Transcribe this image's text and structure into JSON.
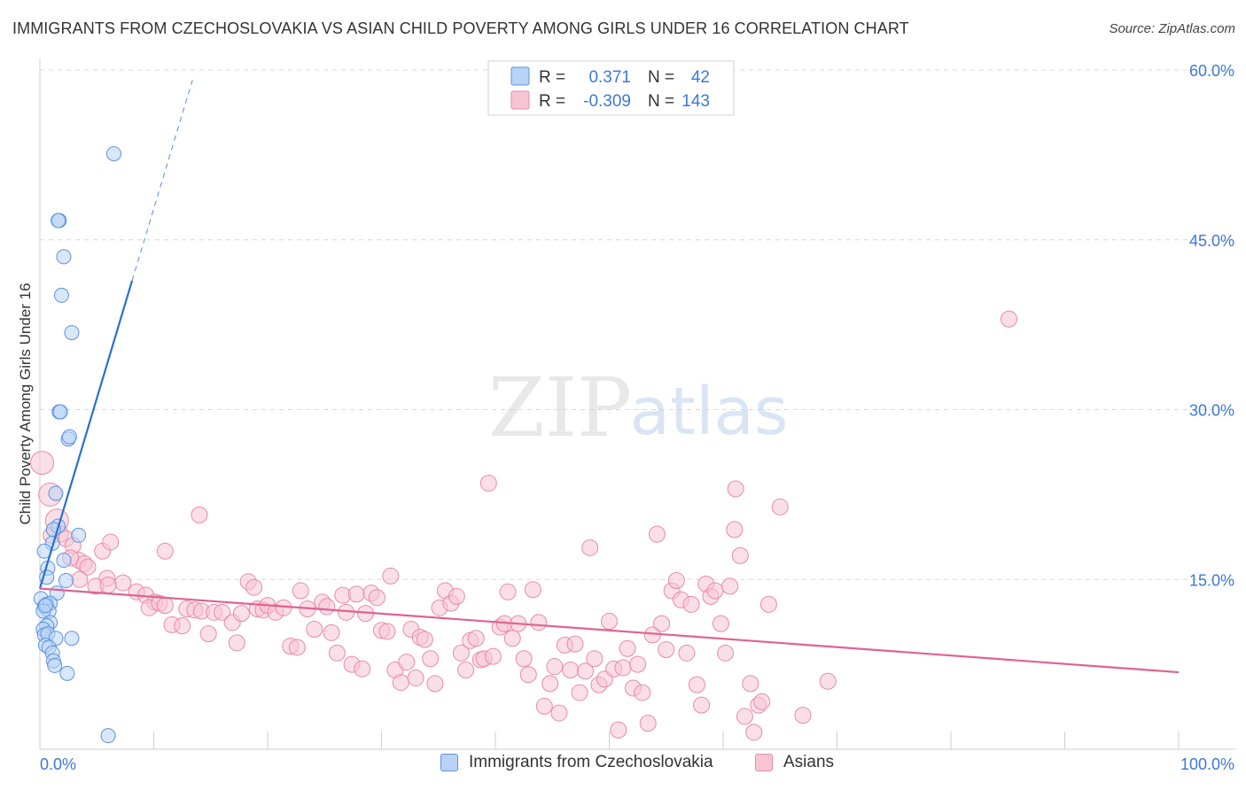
{
  "header": {
    "title": "IMMIGRANTS FROM CZECHOSLOVAKIA VS ASIAN CHILD POVERTY AMONG GIRLS UNDER 16 CORRELATION CHART",
    "source": "Source: ZipAtlas.com"
  },
  "watermark": {
    "zip": "ZIP",
    "atlas": "atlas"
  },
  "colors": {
    "blue_fill": "#b8d3f5",
    "blue_stroke": "#5d93db",
    "blue_line": "#2a6fd3",
    "pink_fill": "#f7c4d3",
    "pink_stroke": "#e88aa8",
    "pink_line": "#e06292",
    "axis_label": "#3c78d8",
    "grid": "#d8d8d8"
  },
  "legend": {
    "rows": [
      {
        "r_label": "R =",
        "r_value": "0.371",
        "n_label": "N =",
        "n_value": "42"
      },
      {
        "r_label": "R =",
        "r_value": "-0.309",
        "n_label": "N =",
        "n_value": "143"
      }
    ]
  },
  "bottom_legend": {
    "blue_label": "Immigrants from Czechoslovakia",
    "pink_label": "Asians"
  },
  "chart_data": {
    "type": "scatter",
    "title": "IMMIGRANTS FROM CZECHOSLOVAKIA VS ASIAN CHILD POVERTY AMONG GIRLS UNDER 16 CORRELATION CHART",
    "xlabel": "",
    "ylabel": "Child Poverty Among Girls Under 16",
    "xlim": [
      0,
      100
    ],
    "ylim": [
      0,
      60
    ],
    "x_tick_labels": [
      "0.0%",
      "100.0%"
    ],
    "y_ticks": [
      15,
      30,
      45,
      60
    ],
    "y_tick_labels": [
      "15.0%",
      "30.0%",
      "45.0%",
      "60.0%"
    ],
    "series": [
      {
        "name": "Immigrants from Czechoslovakia",
        "color": "#5d93db",
        "r": 0.371,
        "n": 42,
        "trend": {
          "x": [
            0,
            8.1
          ],
          "y": [
            14.2,
            41.4
          ],
          "dashed_to": [
            13.4,
            59.1
          ]
        },
        "points": [
          [
            6.5,
            52.6
          ],
          [
            1.7,
            46.7
          ],
          [
            1.6,
            46.7
          ],
          [
            2.1,
            43.5
          ],
          [
            1.9,
            40.1
          ],
          [
            2.8,
            36.8
          ],
          [
            1.7,
            29.8
          ],
          [
            1.8,
            29.8
          ],
          [
            2.5,
            27.4
          ],
          [
            2.6,
            27.6
          ],
          [
            1.4,
            22.6
          ],
          [
            1.6,
            19.7
          ],
          [
            1.2,
            19.4
          ],
          [
            3.4,
            18.9
          ],
          [
            1.1,
            18.2
          ],
          [
            0.4,
            17.5
          ],
          [
            2.1,
            16.7
          ],
          [
            0.7,
            16.0
          ],
          [
            0.6,
            15.2
          ],
          [
            2.3,
            14.9
          ],
          [
            1.5,
            13.8
          ],
          [
            0.1,
            13.3
          ],
          [
            0.4,
            12.6
          ],
          [
            0.6,
            12.8
          ],
          [
            0.9,
            12.9
          ],
          [
            0.8,
            12.2
          ],
          [
            0.3,
            12.2
          ],
          [
            0.9,
            11.2
          ],
          [
            0.6,
            10.9
          ],
          [
            0.3,
            10.6
          ],
          [
            0.4,
            10.1
          ],
          [
            0.7,
            10.2
          ],
          [
            1.4,
            9.8
          ],
          [
            2.8,
            9.8
          ],
          [
            0.5,
            9.2
          ],
          [
            0.8,
            9.0
          ],
          [
            1.1,
            8.5
          ],
          [
            1.2,
            7.8
          ],
          [
            1.3,
            7.4
          ],
          [
            2.4,
            6.7
          ],
          [
            6.0,
            1.2
          ],
          [
            0.5,
            12.7
          ]
        ]
      },
      {
        "name": "Asians",
        "color": "#e88aa8",
        "r": -0.309,
        "n": 143,
        "trend": {
          "x": [
            0,
            100
          ],
          "y": [
            14.2,
            6.8
          ]
        },
        "points": [
          [
            0.2,
            25.3
          ],
          [
            0.9,
            22.5
          ],
          [
            1.5,
            20.2
          ],
          [
            1.8,
            19.0
          ],
          [
            2.3,
            18.6
          ],
          [
            2.9,
            18.0
          ],
          [
            3.4,
            16.7
          ],
          [
            3.9,
            16.4
          ],
          [
            4.2,
            16.1
          ],
          [
            2.7,
            16.9
          ],
          [
            5.9,
            15.1
          ],
          [
            7.3,
            14.7
          ],
          [
            4.9,
            14.4
          ],
          [
            6.0,
            14.5
          ],
          [
            8.5,
            13.9
          ],
          [
            9.3,
            13.6
          ],
          [
            10.1,
            13.0
          ],
          [
            9.6,
            12.5
          ],
          [
            10.5,
            12.9
          ],
          [
            11.0,
            12.7
          ],
          [
            11.6,
            11.0
          ],
          [
            12.5,
            10.9
          ],
          [
            12.9,
            12.4
          ],
          [
            13.6,
            12.3
          ],
          [
            14.2,
            12.2
          ],
          [
            15.3,
            12.1
          ],
          [
            14.8,
            10.2
          ],
          [
            16.0,
            12.1
          ],
          [
            16.9,
            11.2
          ],
          [
            17.3,
            9.4
          ],
          [
            17.7,
            12.0
          ],
          [
            18.3,
            14.8
          ],
          [
            18.8,
            14.3
          ],
          [
            19.1,
            12.4
          ],
          [
            19.6,
            12.3
          ],
          [
            20.0,
            12.7
          ],
          [
            20.7,
            12.1
          ],
          [
            21.4,
            12.5
          ],
          [
            22.0,
            9.1
          ],
          [
            22.6,
            9.0
          ],
          [
            22.9,
            14.0
          ],
          [
            23.5,
            12.4
          ],
          [
            24.1,
            10.6
          ],
          [
            24.8,
            13.0
          ],
          [
            25.2,
            12.6
          ],
          [
            25.6,
            10.3
          ],
          [
            26.1,
            8.5
          ],
          [
            26.6,
            13.6
          ],
          [
            26.9,
            12.1
          ],
          [
            27.4,
            7.5
          ],
          [
            27.8,
            13.7
          ],
          [
            28.3,
            7.1
          ],
          [
            28.6,
            12.0
          ],
          [
            29.1,
            13.8
          ],
          [
            29.6,
            13.4
          ],
          [
            30.0,
            10.5
          ],
          [
            30.5,
            10.4
          ],
          [
            30.8,
            15.3
          ],
          [
            31.2,
            7.0
          ],
          [
            31.7,
            5.9
          ],
          [
            32.2,
            7.7
          ],
          [
            32.6,
            10.6
          ],
          [
            33.0,
            6.3
          ],
          [
            33.4,
            9.9
          ],
          [
            33.8,
            9.7
          ],
          [
            34.3,
            8.0
          ],
          [
            34.7,
            5.8
          ],
          [
            35.1,
            12.5
          ],
          [
            35.6,
            14.0
          ],
          [
            36.1,
            12.9
          ],
          [
            36.6,
            13.5
          ],
          [
            37.0,
            8.5
          ],
          [
            37.4,
            7.0
          ],
          [
            37.8,
            9.6
          ],
          [
            38.3,
            9.8
          ],
          [
            38.7,
            7.9
          ],
          [
            39.0,
            8.0
          ],
          [
            39.4,
            23.5
          ],
          [
            39.8,
            8.2
          ],
          [
            40.4,
            10.8
          ],
          [
            40.8,
            11.1
          ],
          [
            41.1,
            13.9
          ],
          [
            41.5,
            9.8
          ],
          [
            42.0,
            11.1
          ],
          [
            42.5,
            8.0
          ],
          [
            42.9,
            6.6
          ],
          [
            43.3,
            14.1
          ],
          [
            43.8,
            11.2
          ],
          [
            44.3,
            3.8
          ],
          [
            44.8,
            5.8
          ],
          [
            45.2,
            7.3
          ],
          [
            45.6,
            3.2
          ],
          [
            46.1,
            9.2
          ],
          [
            46.6,
            7.0
          ],
          [
            47.0,
            9.3
          ],
          [
            47.4,
            5.0
          ],
          [
            47.9,
            6.9
          ],
          [
            48.3,
            17.8
          ],
          [
            48.7,
            8.0
          ],
          [
            49.1,
            5.7
          ],
          [
            49.6,
            6.2
          ],
          [
            50.0,
            11.3
          ],
          [
            50.4,
            7.1
          ],
          [
            50.8,
            1.7
          ],
          [
            51.2,
            7.2
          ],
          [
            51.6,
            8.9
          ],
          [
            52.1,
            5.4
          ],
          [
            52.5,
            7.5
          ],
          [
            52.9,
            5.0
          ],
          [
            53.4,
            2.3
          ],
          [
            53.8,
            10.1
          ],
          [
            54.2,
            19.0
          ],
          [
            54.6,
            11.1
          ],
          [
            55.0,
            8.8
          ],
          [
            55.5,
            14.0
          ],
          [
            55.9,
            14.9
          ],
          [
            56.3,
            13.2
          ],
          [
            56.8,
            8.5
          ],
          [
            57.2,
            12.8
          ],
          [
            57.7,
            5.7
          ],
          [
            58.1,
            3.9
          ],
          [
            58.5,
            14.6
          ],
          [
            58.9,
            13.5
          ],
          [
            59.3,
            14.0
          ],
          [
            59.8,
            11.1
          ],
          [
            60.2,
            8.5
          ],
          [
            60.6,
            14.4
          ],
          [
            61.1,
            23.0
          ],
          [
            61.0,
            19.4
          ],
          [
            61.5,
            17.1
          ],
          [
            62.4,
            5.8
          ],
          [
            63.1,
            3.9
          ],
          [
            63.4,
            4.2
          ],
          [
            64.0,
            12.8
          ],
          [
            65.0,
            21.4
          ],
          [
            67.0,
            3.0
          ],
          [
            69.2,
            6.0
          ],
          [
            85.1,
            38.0
          ],
          [
            61.9,
            2.9
          ],
          [
            62.7,
            1.5
          ],
          [
            1.0,
            18.9
          ],
          [
            3.5,
            15.0
          ],
          [
            5.5,
            17.5
          ],
          [
            6.2,
            18.3
          ],
          [
            14.0,
            20.7
          ],
          [
            11.0,
            17.5
          ]
        ]
      }
    ]
  }
}
